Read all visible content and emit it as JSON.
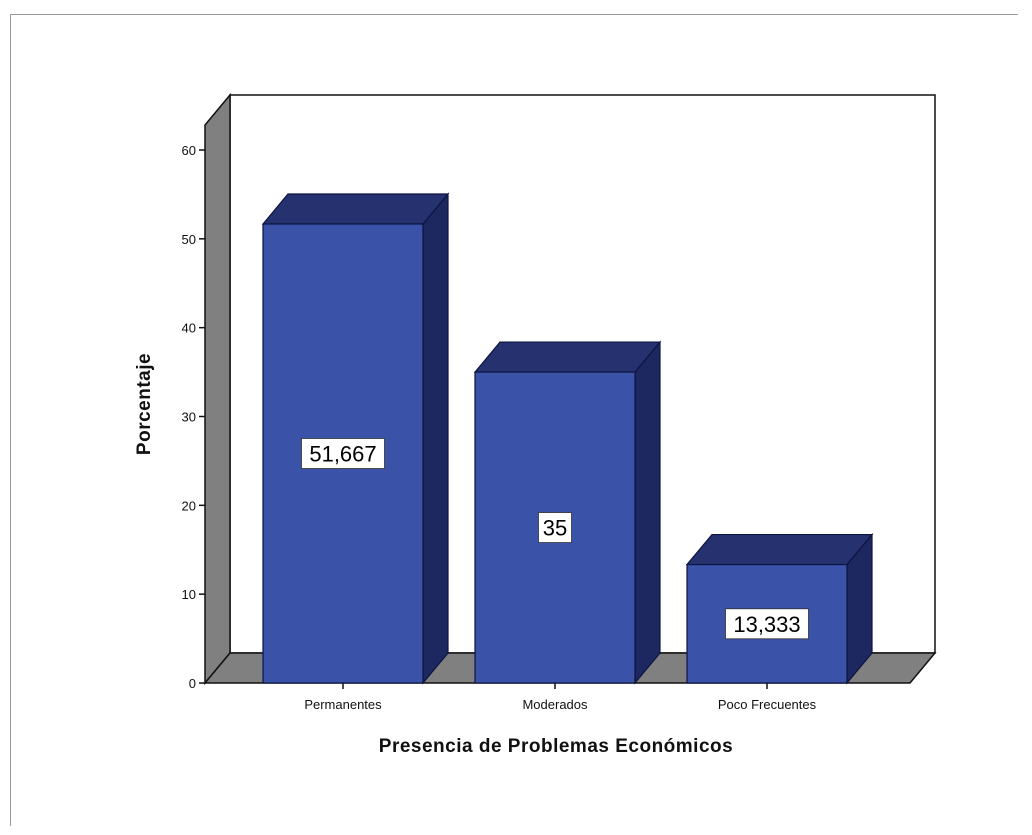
{
  "chart_data": {
    "type": "bar",
    "categories": [
      "Permanentes",
      "Moderados",
      "Poco Frecuentes"
    ],
    "values": [
      51.667,
      35,
      13.333
    ],
    "value_labels": [
      "51,667",
      "35",
      "13,333"
    ],
    "title": "",
    "xlabel": "Presencia de Problemas Económicos",
    "ylabel": "Porcentaje",
    "ylim": [
      0,
      60
    ],
    "yticks": [
      0,
      10,
      20,
      30,
      40,
      50,
      60
    ],
    "ytick_labels": [
      "0",
      "10",
      "20",
      "30",
      "40",
      "50",
      "60"
    ],
    "grid": false,
    "legend": "none",
    "style": "3d",
    "colors": {
      "bar_front": "#3a53a8",
      "bar_top": "#263270",
      "bar_side": "#1e2860",
      "bar_outline": "#0d1440",
      "floor": "#808080",
      "wall": "#ffffff"
    }
  }
}
